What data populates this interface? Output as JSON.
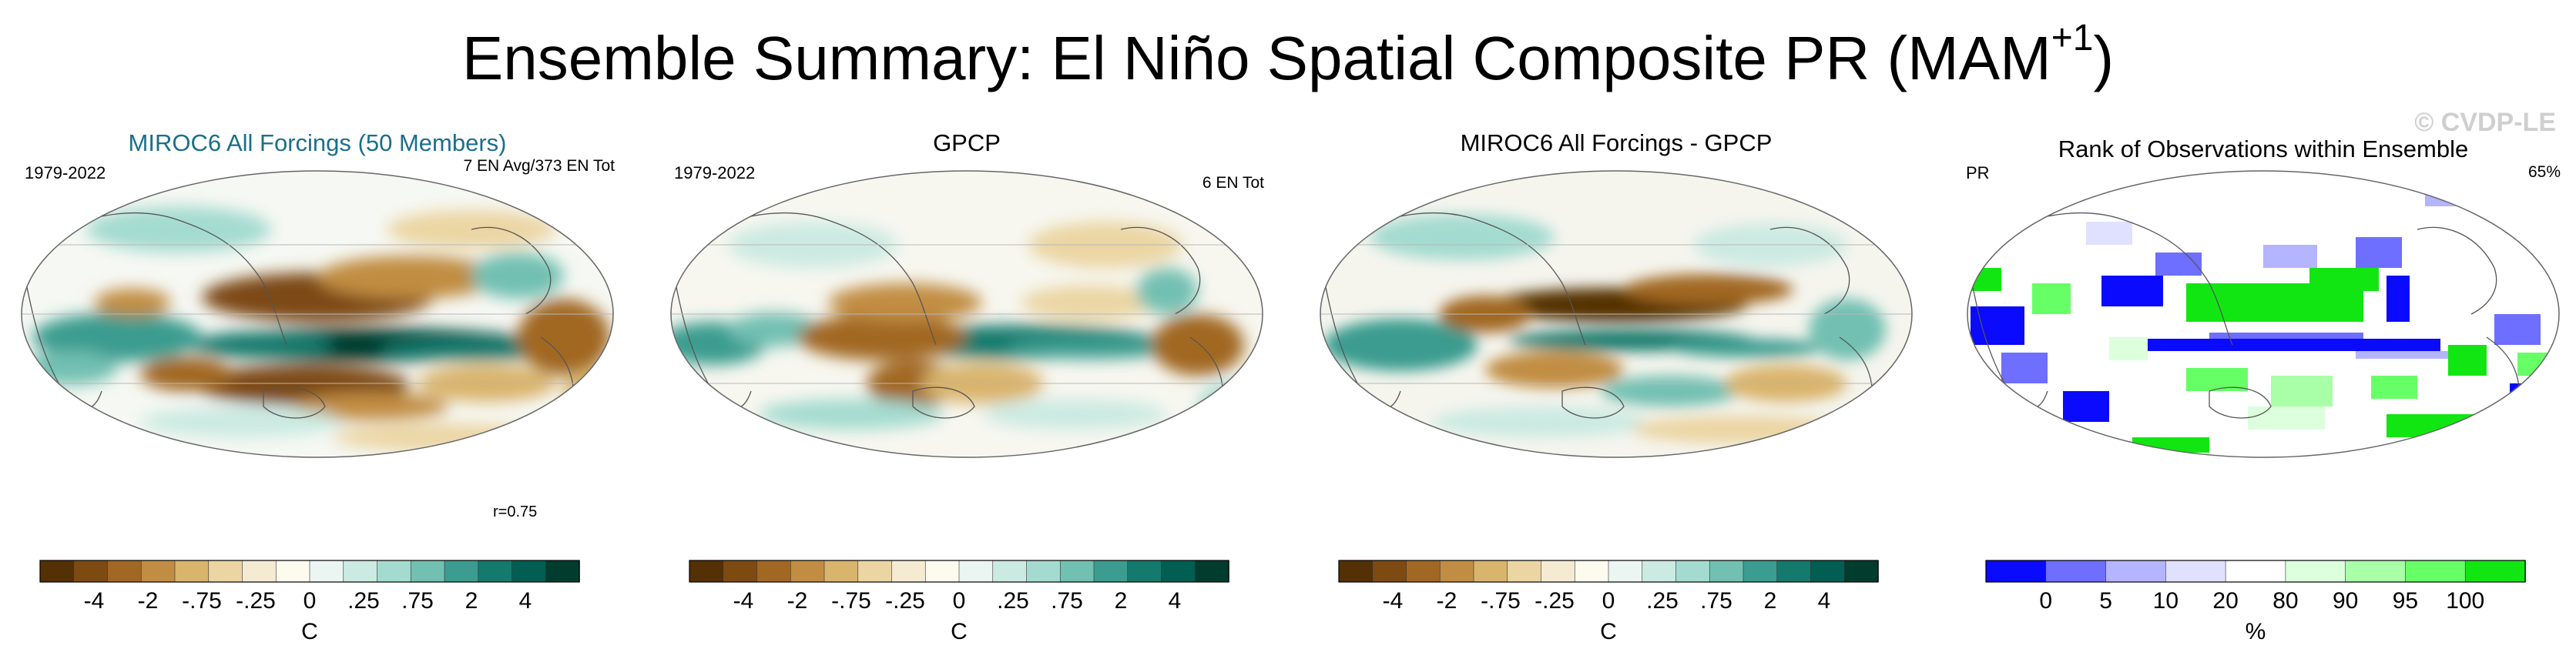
{
  "title": {
    "main": "Ensemble Summary: El Niño Spatial Composite PR (MAM",
    "superscript": "+1",
    "suffix": ")"
  },
  "watermark": "© CVDP-LE",
  "panels": [
    {
      "title": "MIROC6 All Forcings (50 Members)",
      "left_text": "1979-2022",
      "right_text": "7 EN Avg/373 EN Tot",
      "corr_text": "r=0.75",
      "colorbar": "brbg"
    },
    {
      "title": "GPCP",
      "left_text": "1979-2022",
      "right_text": "6 EN Tot",
      "corr_text": "",
      "colorbar": "brbg"
    },
    {
      "title": "MIROC6 All Forcings - GPCP",
      "left_text": "",
      "right_text": "",
      "corr_text": "",
      "colorbar": "brbg"
    },
    {
      "title": "Rank of Observations within Ensemble",
      "left_text": "PR",
      "right_text": "65%",
      "corr_text": "",
      "colorbar": "rank"
    }
  ],
  "chart_data": [
    {
      "type": "heatmap",
      "title": "MIROC6 All Forcings (50 Members)",
      "projection": "Robinson (Pacific-centered)",
      "colorbar": {
        "ticks": [
          "-4",
          "-2",
          "-.75",
          "-.25",
          "0",
          ".25",
          ".75",
          "2",
          "4"
        ],
        "units": "C"
      },
      "features": [
        "strong positive (wet) band along equatorial central/eastern Pacific",
        "dry lobes north and south of equator in western Pacific",
        "dry over northern South America",
        "wet over western Indian Ocean"
      ]
    },
    {
      "type": "heatmap",
      "title": "GPCP",
      "projection": "Robinson (Pacific-centered)",
      "colorbar": {
        "ticks": [
          "-4",
          "-2",
          "-.75",
          "-.25",
          "0",
          ".25",
          ".75",
          "2",
          "4"
        ],
        "units": "C"
      },
      "features": [
        "wet band along equatorial central Pacific",
        "dry over Maritime Continent and northern Australia",
        "dry over northern South America",
        "wet over Indian Ocean"
      ]
    },
    {
      "type": "heatmap",
      "title": "MIROC6 All Forcings - GPCP",
      "projection": "Robinson (Pacific-centered)",
      "colorbar": {
        "ticks": [
          "-4",
          "-2",
          "-.75",
          "-.25",
          "0",
          ".25",
          ".75",
          "2",
          "4"
        ],
        "units": "C"
      },
      "features": [
        "dry bias north of equator in western Pacific",
        "wet bias along equatorial Pacific",
        "mixed differences elsewhere"
      ]
    },
    {
      "type": "heatmap",
      "title": "Rank of Observations within Ensemble",
      "projection": "Robinson (Pacific-centered)",
      "colorbar": {
        "ticks": [
          "0",
          "5",
          "10",
          "20",
          "80",
          "90",
          "95",
          "100"
        ],
        "units": "%"
      },
      "features": [
        "low ranks (blue) along equatorial Pacific and western ocean basins",
        "high ranks (green) in northern subtropical Pacific and southern oceans"
      ]
    }
  ],
  "colors": {
    "brbg": [
      "#543005",
      "#7d4a12",
      "#a16824",
      "#c18d43",
      "#d9b46c",
      "#ebd5a3",
      "#f5ebd3",
      "#fdfaee",
      "#ebf6f2",
      "#cbeae2",
      "#a4dbd0",
      "#72c0b2",
      "#3b9c8f",
      "#147a6d",
      "#005f52",
      "#003d2f"
    ],
    "rank": [
      "#0a0aff",
      "#6e6eff",
      "#b4b4ff",
      "#e0e0ff",
      "#ffffff",
      "#dcffdc",
      "#a8ffa8",
      "#66ff66",
      "#12e612"
    ]
  }
}
